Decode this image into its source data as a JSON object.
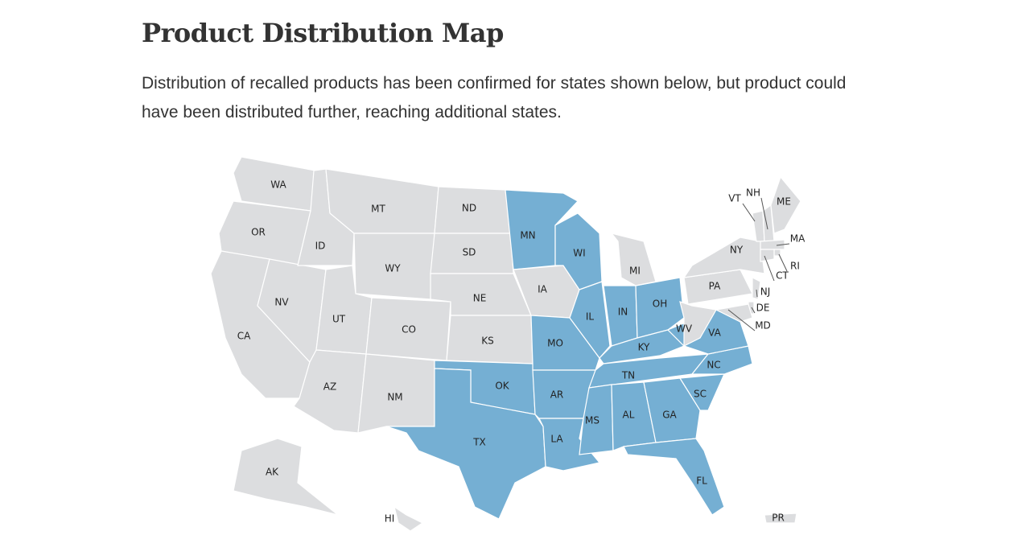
{
  "header": {
    "title": "Product Distribution Map",
    "description": "Distribution of recalled products has been confirmed for states shown below, but product could have been distributed further, reaching additional states."
  },
  "map": {
    "colors": {
      "highlighted": "#75afd3",
      "default": "#dcdddf"
    },
    "states": [
      {
        "label": "WA",
        "highlighted": false
      },
      {
        "label": "OR",
        "highlighted": false
      },
      {
        "label": "CA",
        "highlighted": false
      },
      {
        "label": "NV",
        "highlighted": false
      },
      {
        "label": "ID",
        "highlighted": false
      },
      {
        "label": "MT",
        "highlighted": false
      },
      {
        "label": "WY",
        "highlighted": false
      },
      {
        "label": "UT",
        "highlighted": false
      },
      {
        "label": "CO",
        "highlighted": false
      },
      {
        "label": "AZ",
        "highlighted": false
      },
      {
        "label": "NM",
        "highlighted": false
      },
      {
        "label": "ND",
        "highlighted": false
      },
      {
        "label": "SD",
        "highlighted": false
      },
      {
        "label": "NE",
        "highlighted": false
      },
      {
        "label": "KS",
        "highlighted": false
      },
      {
        "label": "OK",
        "highlighted": true
      },
      {
        "label": "TX",
        "highlighted": true
      },
      {
        "label": "MN",
        "highlighted": true
      },
      {
        "label": "IA",
        "highlighted": false
      },
      {
        "label": "MO",
        "highlighted": true
      },
      {
        "label": "AR",
        "highlighted": true
      },
      {
        "label": "LA",
        "highlighted": true
      },
      {
        "label": "WI",
        "highlighted": true
      },
      {
        "label": "IL",
        "highlighted": true
      },
      {
        "label": "IN",
        "highlighted": true
      },
      {
        "label": "OH",
        "highlighted": true
      },
      {
        "label": "MI",
        "highlighted": false
      },
      {
        "label": "KY",
        "highlighted": true
      },
      {
        "label": "TN",
        "highlighted": true
      },
      {
        "label": "MS",
        "highlighted": true
      },
      {
        "label": "AL",
        "highlighted": true
      },
      {
        "label": "GA",
        "highlighted": true
      },
      {
        "label": "FL",
        "highlighted": true
      },
      {
        "label": "SC",
        "highlighted": true
      },
      {
        "label": "NC",
        "highlighted": true
      },
      {
        "label": "VA",
        "highlighted": true
      },
      {
        "label": "WV",
        "highlighted": false
      },
      {
        "label": "PA",
        "highlighted": false
      },
      {
        "label": "NY",
        "highlighted": false
      },
      {
        "label": "VT",
        "highlighted": false
      },
      {
        "label": "NH",
        "highlighted": false
      },
      {
        "label": "ME",
        "highlighted": false
      },
      {
        "label": "MA",
        "highlighted": false
      },
      {
        "label": "RI",
        "highlighted": false
      },
      {
        "label": "CT",
        "highlighted": false
      },
      {
        "label": "NJ",
        "highlighted": false
      },
      {
        "label": "DE",
        "highlighted": false
      },
      {
        "label": "MD",
        "highlighted": false
      },
      {
        "label": "AK",
        "highlighted": false
      },
      {
        "label": "HI",
        "highlighted": false
      },
      {
        "label": "PR",
        "highlighted": false
      }
    ]
  }
}
